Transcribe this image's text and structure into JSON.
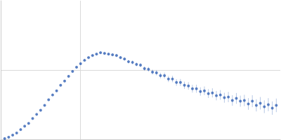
{
  "chart_data": {
    "type": "scatter",
    "color": "#3563b5",
    "marker": "circle",
    "xlim": [
      0,
      3.5
    ],
    "xticks": [
      1
    ],
    "ylim": [
      0,
      2
    ],
    "yticks": [
      1
    ],
    "grid": true,
    "tick_labels": false,
    "x": [
      0.05,
      0.1,
      0.15,
      0.2,
      0.25,
      0.3,
      0.35,
      0.4,
      0.45,
      0.5,
      0.55,
      0.6,
      0.65,
      0.7,
      0.75,
      0.8,
      0.85,
      0.9,
      0.95,
      1.0,
      1.05,
      1.1,
      1.15,
      1.2,
      1.25,
      1.3,
      1.35,
      1.4,
      1.45,
      1.5,
      1.55,
      1.6,
      1.65,
      1.7,
      1.75,
      1.8,
      1.85,
      1.9,
      1.95,
      2.0,
      2.05,
      2.1,
      2.15,
      2.2,
      2.25,
      2.3,
      2.35,
      2.4,
      2.45,
      2.5,
      2.55,
      2.6,
      2.65,
      2.7,
      2.75,
      2.8,
      2.85,
      2.9,
      2.95,
      3.0,
      3.05,
      3.1,
      3.15,
      3.2,
      3.25,
      3.3,
      3.35,
      3.4,
      3.45
    ],
    "values": [
      0.01,
      0.03,
      0.06,
      0.09,
      0.14,
      0.19,
      0.23,
      0.3,
      0.36,
      0.42,
      0.49,
      0.57,
      0.64,
      0.7,
      0.78,
      0.84,
      0.91,
      0.98,
      1.04,
      1.09,
      1.14,
      1.18,
      1.21,
      1.23,
      1.25,
      1.24,
      1.23,
      1.22,
      1.21,
      1.18,
      1.16,
      1.12,
      1.11,
      1.08,
      1.07,
      1.02,
      1.01,
      0.97,
      0.96,
      0.92,
      0.92,
      0.87,
      0.87,
      0.82,
      0.82,
      0.78,
      0.77,
      0.73,
      0.73,
      0.69,
      0.7,
      0.66,
      0.67,
      0.63,
      0.64,
      0.6,
      0.61,
      0.56,
      0.59,
      0.55,
      0.56,
      0.51,
      0.55,
      0.49,
      0.52,
      0.47,
      0.5,
      0.45,
      0.49
    ],
    "errors": [
      0.003,
      0.003,
      0.003,
      0.004,
      0.004,
      0.004,
      0.005,
      0.005,
      0.005,
      0.006,
      0.006,
      0.006,
      0.007,
      0.007,
      0.008,
      0.008,
      0.009,
      0.009,
      0.01,
      0.01,
      0.011,
      0.012,
      0.013,
      0.014,
      0.015,
      0.016,
      0.017,
      0.018,
      0.019,
      0.02,
      0.022,
      0.024,
      0.026,
      0.028,
      0.03,
      0.032,
      0.034,
      0.036,
      0.038,
      0.04,
      0.042,
      0.044,
      0.046,
      0.048,
      0.05,
      0.052,
      0.054,
      0.056,
      0.058,
      0.06,
      0.062,
      0.064,
      0.066,
      0.068,
      0.07,
      0.072,
      0.074,
      0.076,
      0.078,
      0.08,
      0.082,
      0.084,
      0.086,
      0.088,
      0.09,
      0.092,
      0.094,
      0.096,
      0.098
    ]
  }
}
